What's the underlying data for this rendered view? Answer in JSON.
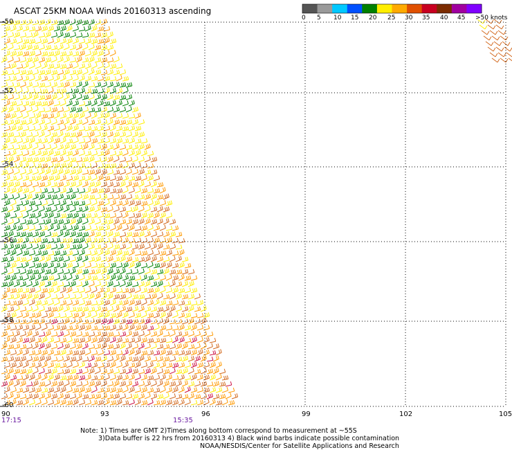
{
  "title": "ASCAT 25KM NOAA Winds 20160313 ascending",
  "legend": {
    "labels": [
      "0",
      "5",
      "10",
      "15",
      "20",
      "25",
      "30",
      "35",
      "40",
      "45",
      ">50 knots"
    ],
    "colors": [
      "#555555",
      "#9a9a9a",
      "#00c8ff",
      "#0050ff",
      "#008000",
      "#ffee00",
      "#ffaa00",
      "#e05000",
      "#c80020",
      "#7b2b00",
      "#a000a0",
      "#8000ff"
    ]
  },
  "axes": {
    "lat_labels": [
      "-50",
      "-52",
      "-54",
      "-56",
      "-58",
      "-60"
    ],
    "lon_labels": [
      "90",
      "93",
      "96",
      "99",
      "102",
      "105"
    ]
  },
  "times": [
    "17:15",
    "15:35"
  ],
  "notes": [
    "Note: 1) Times are GMT 2)Times along bottom correspond to measurement at ~55S",
    "3)Data buffer is 22 hrs from 20160313 4) Black wind barbs indicate possible contamination",
    "NOAA/NESDIS/Center for Satellite Applications and Research"
  ],
  "colors": {
    "green": "#008000",
    "yellow": "#ffee00",
    "orange": "#ff9900",
    "dark_orange": "#d2691e",
    "red": "#cc1144",
    "grid": "#000000"
  }
}
